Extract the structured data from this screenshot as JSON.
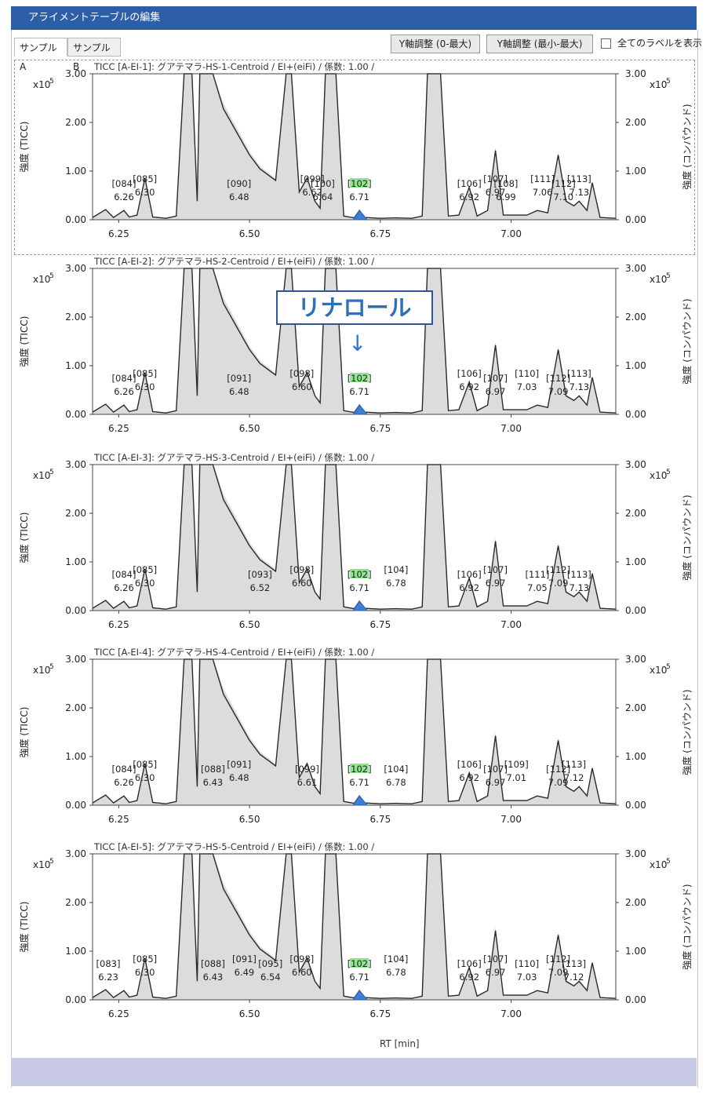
{
  "window": {
    "title": "アライメントテーブルの編集"
  },
  "tabs": [
    {
      "label": "サンプルA",
      "active": true
    },
    {
      "label": "サンプルB",
      "active": false
    }
  ],
  "toolbar": {
    "yadjust1": "Y軸調整 (0-最大)",
    "yadjust2": "Y軸調整 (最小-最大)",
    "show_all_labels": "全てのラベルを表示"
  },
  "annotation": {
    "text": "リナロール",
    "arrow": "↓"
  },
  "colors": {
    "title_bg": "#2d5ea8",
    "footer": "#c9cbe6",
    "highlight_peak": "#3d7fd4",
    "highlight_label": "#8ee58e",
    "trace": "#2a2a2a",
    "fill": "#dcdcdc"
  },
  "chart_data": [
    {
      "type": "line",
      "title": "TICC [A-EI-1]: グアテマラ-HS-1-Centroid / EI+(eiFi) / 係数: 1.00 /",
      "ylabel_left": "強度 (TICC)",
      "ylabel_right": "強度 (コンパウンド)",
      "y_multiplier": "x10",
      "y_multiplier_exp": "5",
      "yticks": [
        "0.00",
        "1.00",
        "2.00",
        "3.00"
      ],
      "xticks": [
        "6.25",
        "6.50",
        "6.75",
        "7.00"
      ],
      "xlim": [
        6.2,
        7.2
      ],
      "ylim": [
        0,
        3.0
      ],
      "peaks": [
        {
          "id": "[084]",
          "rt": "6.26"
        },
        {
          "id": "[085]",
          "rt": "6.30"
        },
        {
          "id": "[090]",
          "rt": "6.48"
        },
        {
          "id": "[099]",
          "rt": "6.62"
        },
        {
          "id": "[100]",
          "rt": "6.64"
        },
        {
          "id": "[102]",
          "rt": "6.71",
          "highlight": true
        },
        {
          "id": "[106]",
          "rt": "6.92"
        },
        {
          "id": "[107]",
          "rt": "6.97"
        },
        {
          "id": "[108]",
          "rt": "6.99"
        },
        {
          "id": "[111]",
          "rt": "7.06"
        },
        {
          "id": "[112]",
          "rt": "7.10"
        },
        {
          "id": "[113]",
          "rt": "7.13"
        }
      ]
    },
    {
      "type": "line",
      "title": "TICC [A-EI-2]: グアテマラ-HS-2-Centroid / EI+(eiFi) / 係数: 1.00 /",
      "ylabel_left": "強度 (TICC)",
      "ylabel_right": "強度 (コンパウンド)",
      "y_multiplier": "x10",
      "y_multiplier_exp": "5",
      "yticks": [
        "0.00",
        "1.00",
        "2.00",
        "3.00"
      ],
      "xticks": [
        "6.25",
        "6.50",
        "6.75",
        "7.00"
      ],
      "xlim": [
        6.2,
        7.2
      ],
      "ylim": [
        0,
        3.0
      ],
      "peaks": [
        {
          "id": "[084]",
          "rt": "6.26"
        },
        {
          "id": "[085]",
          "rt": "6.30"
        },
        {
          "id": "[091]",
          "rt": "6.48"
        },
        {
          "id": "[098]",
          "rt": "6.60"
        },
        {
          "id": "[102]",
          "rt": "6.71",
          "highlight": true
        },
        {
          "id": "[106]",
          "rt": "6.92"
        },
        {
          "id": "[107]",
          "rt": "6.97"
        },
        {
          "id": "[110]",
          "rt": "7.03"
        },
        {
          "id": "[112]",
          "rt": "7.09"
        },
        {
          "id": "[113]",
          "rt": "7.13"
        }
      ]
    },
    {
      "type": "line",
      "title": "TICC [A-EI-3]: グアテマラ-HS-3-Centroid / EI+(eiFi) / 係数: 1.00 /",
      "ylabel_left": "強度 (TICC)",
      "ylabel_right": "強度 (コンパウンド)",
      "y_multiplier": "x10",
      "y_multiplier_exp": "5",
      "yticks": [
        "0.00",
        "1.00",
        "2.00",
        "3.00"
      ],
      "xticks": [
        "6.25",
        "6.50",
        "6.75",
        "7.00"
      ],
      "xlim": [
        6.2,
        7.2
      ],
      "ylim": [
        0,
        3.0
      ],
      "peaks": [
        {
          "id": "[084]",
          "rt": "6.26"
        },
        {
          "id": "[085]",
          "rt": "6.30"
        },
        {
          "id": "[093]",
          "rt": "6.52"
        },
        {
          "id": "[098]",
          "rt": "6.60"
        },
        {
          "id": "[102]",
          "rt": "6.71",
          "highlight": true
        },
        {
          "id": "[104]",
          "rt": "6.78"
        },
        {
          "id": "[106]",
          "rt": "6.92"
        },
        {
          "id": "[107]",
          "rt": "6.97"
        },
        {
          "id": "[111]",
          "rt": "7.05"
        },
        {
          "id": "[112]",
          "rt": "7.09"
        },
        {
          "id": "[113]",
          "rt": "7.13"
        }
      ]
    },
    {
      "type": "line",
      "title": "TICC [A-EI-4]: グアテマラ-HS-4-Centroid / EI+(eiFi) / 係数: 1.00 /",
      "ylabel_left": "強度 (TICC)",
      "ylabel_right": "強度 (コンパウンド)",
      "y_multiplier": "x10",
      "y_multiplier_exp": "5",
      "yticks": [
        "0.00",
        "1.00",
        "2.00",
        "3.00"
      ],
      "xticks": [
        "6.25",
        "6.50",
        "6.75",
        "7.00"
      ],
      "xlim": [
        6.2,
        7.2
      ],
      "ylim": [
        0,
        3.0
      ],
      "peaks": [
        {
          "id": "[084]",
          "rt": "6.26"
        },
        {
          "id": "[085]",
          "rt": "6.30"
        },
        {
          "id": "[088]",
          "rt": "6.43"
        },
        {
          "id": "[091]",
          "rt": "6.48"
        },
        {
          "id": "[099]",
          "rt": "6.61"
        },
        {
          "id": "[102]",
          "rt": "6.71",
          "highlight": true
        },
        {
          "id": "[104]",
          "rt": "6.78"
        },
        {
          "id": "[106]",
          "rt": "6.92"
        },
        {
          "id": "[107]",
          "rt": "6.97"
        },
        {
          "id": "[109]",
          "rt": "7.01"
        },
        {
          "id": "[112]",
          "rt": "7.09"
        },
        {
          "id": "[113]",
          "rt": "7.12"
        }
      ]
    },
    {
      "type": "line",
      "title": "TICC [A-EI-5]: グアテマラ-HS-5-Centroid / EI+(eiFi) / 係数: 1.00 /",
      "ylabel_left": "強度 (TICC)",
      "ylabel_right": "強度 (コンパウンド)",
      "y_multiplier": "x10",
      "y_multiplier_exp": "5",
      "yticks": [
        "0.00",
        "1.00",
        "2.00",
        "3.00"
      ],
      "xticks": [
        "6.25",
        "6.50",
        "6.75",
        "7.00"
      ],
      "xlim": [
        6.2,
        7.2
      ],
      "ylim": [
        0,
        3.0
      ],
      "xlabel": "RT [min]",
      "peaks": [
        {
          "id": "[083]",
          "rt": "6.23"
        },
        {
          "id": "[085]",
          "rt": "6.30"
        },
        {
          "id": "[088]",
          "rt": "6.43"
        },
        {
          "id": "[091]",
          "rt": "6.49"
        },
        {
          "id": "[095]",
          "rt": "6.54"
        },
        {
          "id": "[098]",
          "rt": "6.60"
        },
        {
          "id": "[102]",
          "rt": "6.71",
          "highlight": true
        },
        {
          "id": "[104]",
          "rt": "6.78"
        },
        {
          "id": "[106]",
          "rt": "6.92"
        },
        {
          "id": "[107]",
          "rt": "6.97"
        },
        {
          "id": "[110]",
          "rt": "7.03"
        },
        {
          "id": "[112]",
          "rt": "7.09"
        },
        {
          "id": "[113]",
          "rt": "7.12"
        }
      ]
    }
  ],
  "xlabel": "RT [min]"
}
